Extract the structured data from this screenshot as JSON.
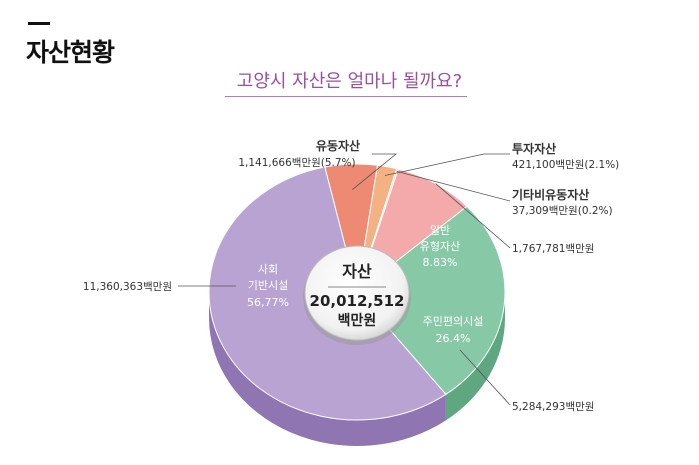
{
  "header": {
    "title": "자산현황",
    "subtitle": "고양시 자산은 얼마나 될까요?"
  },
  "center": {
    "label": "자산",
    "total": "20,012,512",
    "unit": "백만원"
  },
  "chart_data": {
    "type": "pie",
    "unit": "백만원",
    "categories": [
      "유동자산",
      "투자자산",
      "기타비유동자산",
      "일반유형자산",
      "주민편의시설",
      "사회기반시설"
    ],
    "values": [
      1141666,
      421100,
      37309,
      1767781,
      5284293,
      11360363
    ],
    "percents": [
      5.7,
      2.1,
      0.2,
      8.83,
      26.4,
      56.77
    ],
    "colors": [
      "#ee8a73",
      "#f4b183",
      "#f7cfa6",
      "#f4a9aa",
      "#87c9a6",
      "#b9a3d3"
    ],
    "side_colors": [
      "#c96a56",
      "#d48e62",
      "#d8ad86",
      "#d08587",
      "#5ea781",
      "#8f76b3"
    ],
    "labels": [
      {
        "name": "유동자산",
        "detail": "1,141,666백만원(5.7%)"
      },
      {
        "name": "투자자산",
        "detail": "421,100백만원(2.1%)"
      },
      {
        "name": "기타비유동자산",
        "detail": "37,309백만원(0.2%)"
      },
      {
        "name": "일반\n유형자산",
        "pct": "8.83%",
        "value": "1,767,781백만원"
      },
      {
        "name": "주민편의시설",
        "pct": "26.4%",
        "value": "5,284,293백만원"
      },
      {
        "name": "사회\n기반시설",
        "pct": "56,77%",
        "value": "11,360,363백만원"
      }
    ]
  }
}
